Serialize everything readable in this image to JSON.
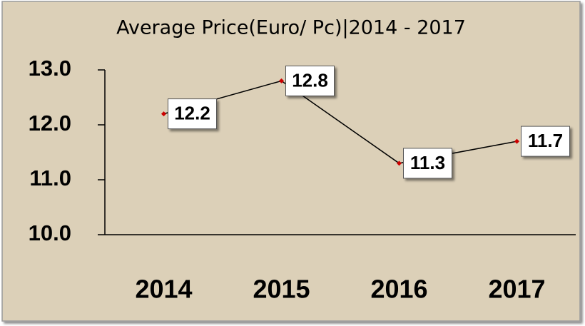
{
  "chart_data": {
    "type": "line",
    "title": "Average Price(Euro/ Pc)|2014 - 2017",
    "categories": [
      "2014",
      "2015",
      "2016",
      "2017"
    ],
    "values": [
      12.2,
      12.8,
      11.3,
      11.7
    ],
    "color": "#000000",
    "marker_color": "#cc0000",
    "ylim": [
      10,
      13
    ],
    "yticks": [
      {
        "value": 10,
        "label": "10.0"
      },
      {
        "value": 11,
        "label": "11.0"
      },
      {
        "value": 12,
        "label": "12.0"
      },
      {
        "value": 13,
        "label": "13.0"
      }
    ],
    "grid": false
  }
}
